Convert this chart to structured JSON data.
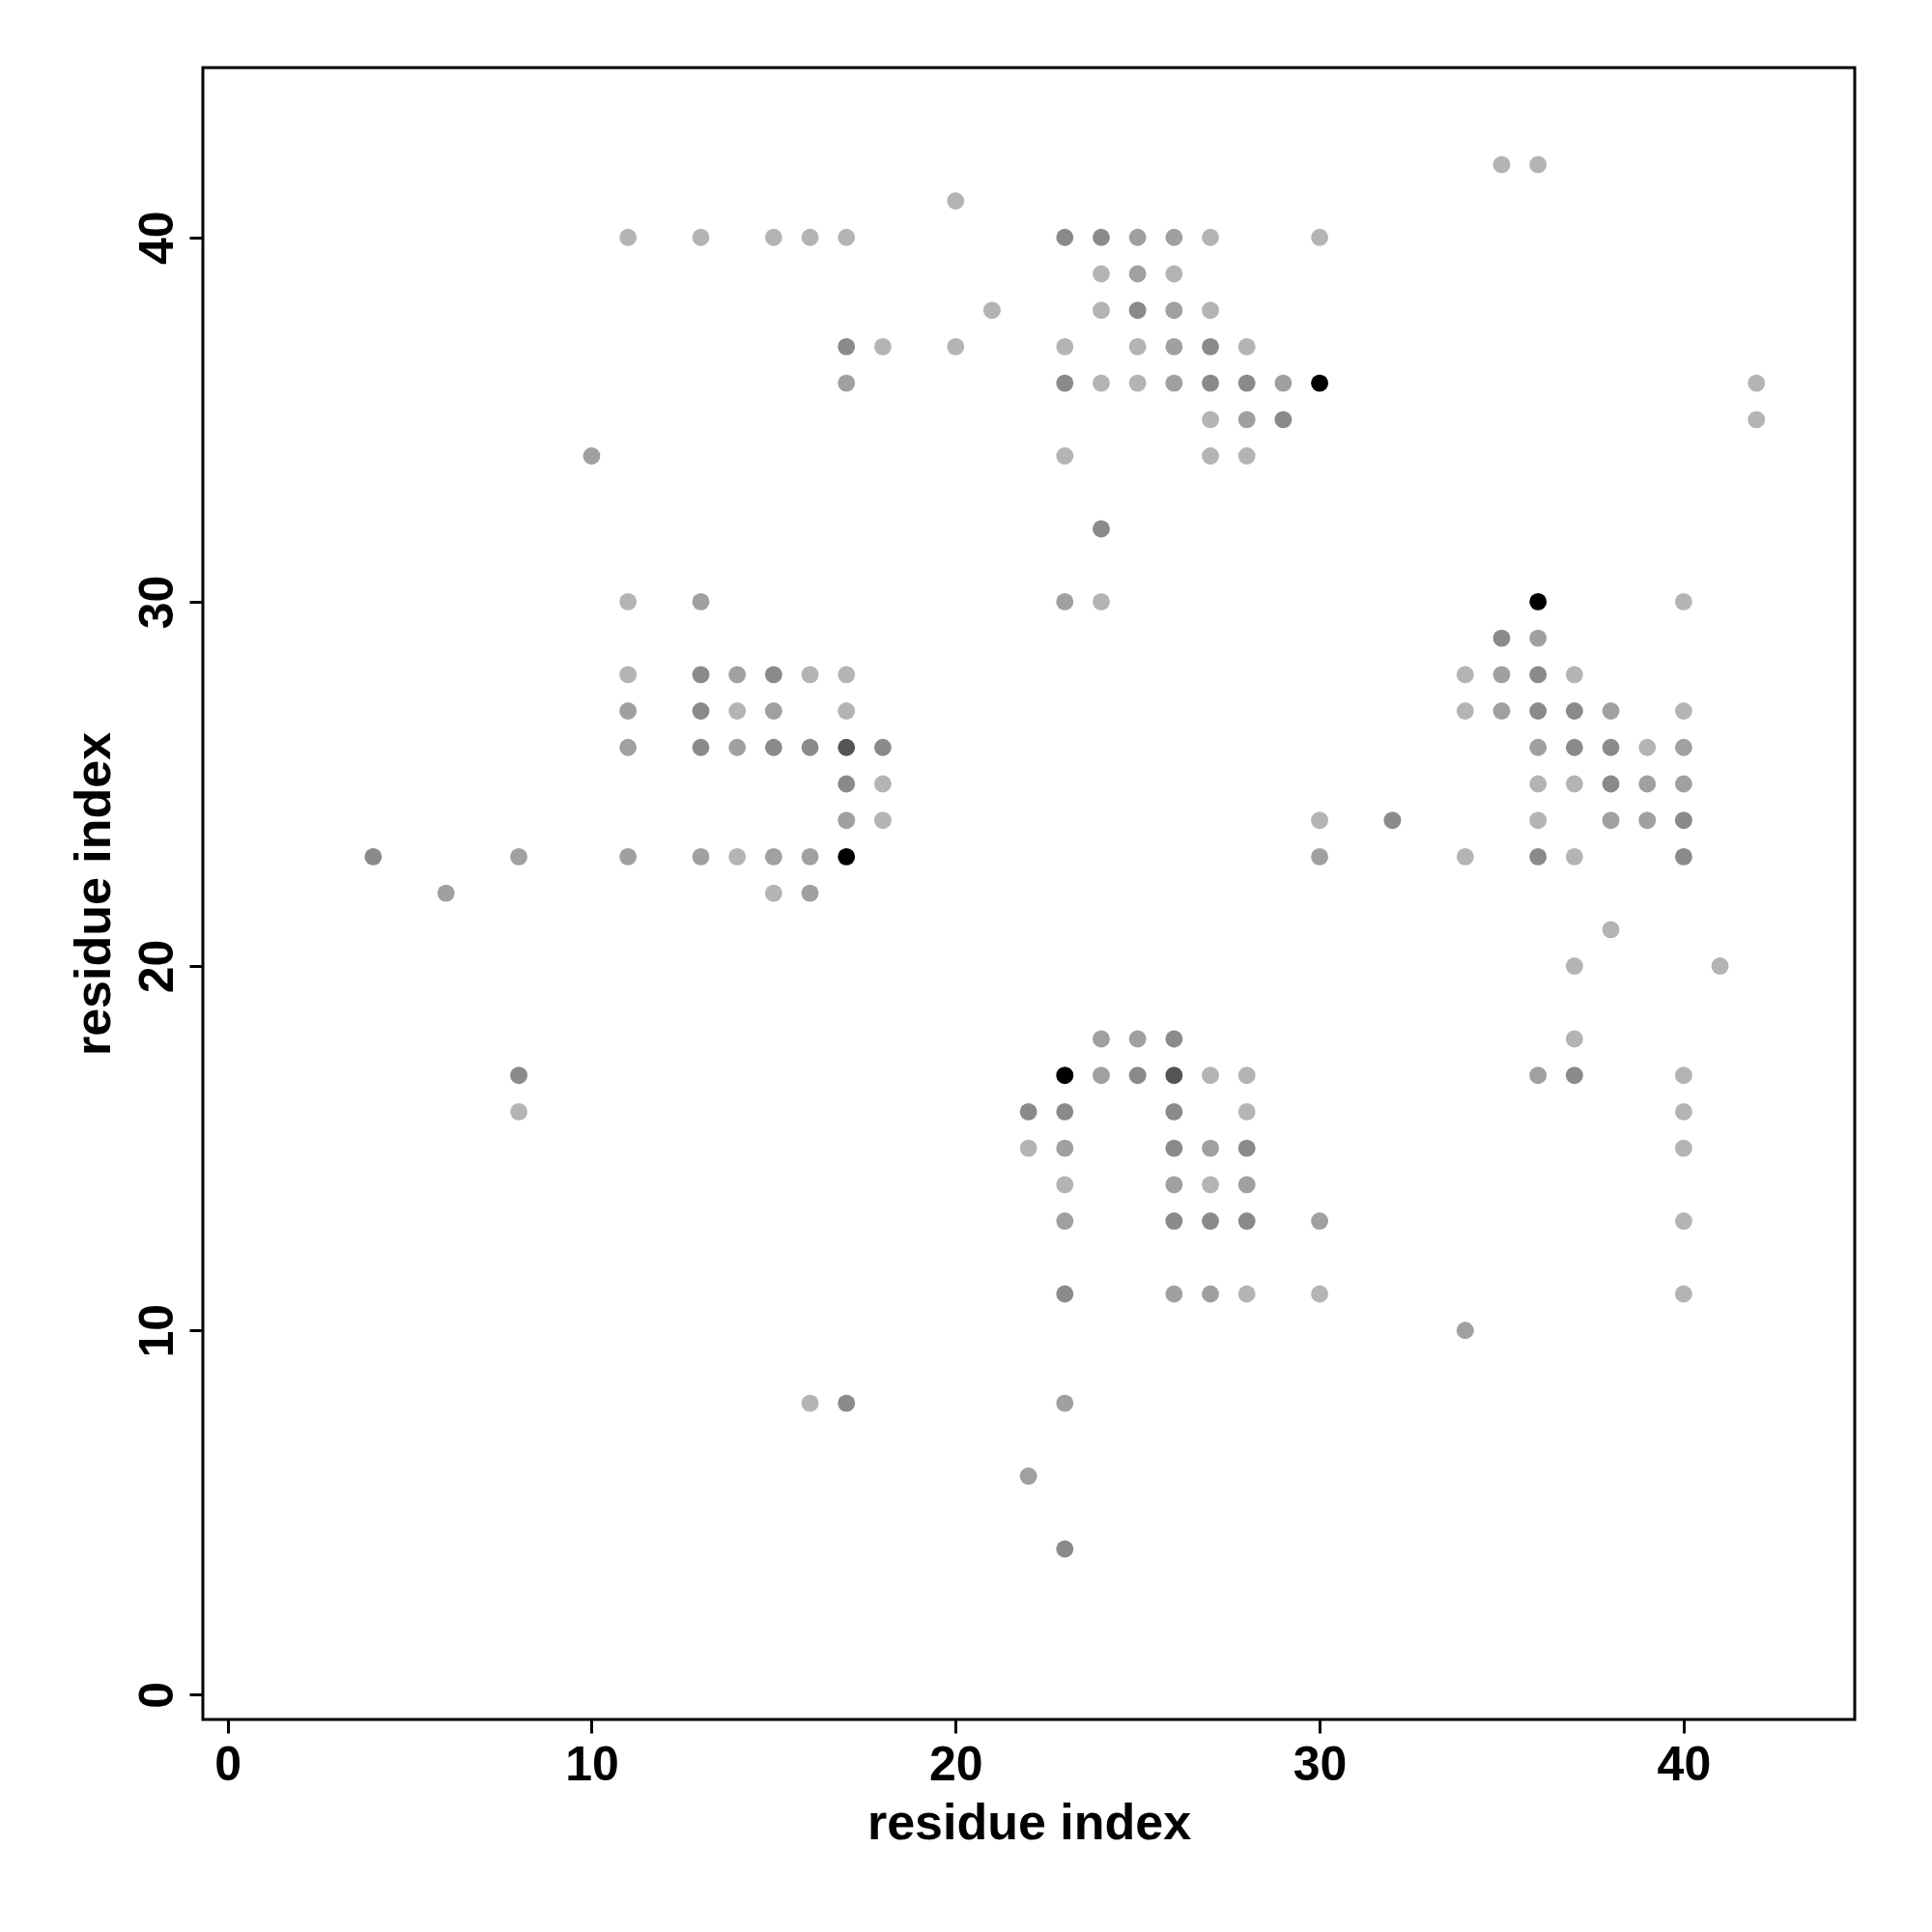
{
  "chart_data": {
    "type": "scatter",
    "xlabel": "residue index",
    "ylabel": "residue index",
    "xlim": [
      -0.68,
      44.7
    ],
    "ylim": [
      -0.68,
      44.66
    ],
    "xticks": [
      0,
      10,
      20,
      30,
      40
    ],
    "yticks": [
      0,
      10,
      20,
      30,
      40
    ],
    "grid": false,
    "marker": "circle",
    "x": [
      11,
      13,
      15,
      16,
      17,
      20,
      17,
      18,
      20,
      21,
      17,
      10,
      11,
      13,
      11,
      13,
      14,
      15,
      16,
      17,
      11,
      13,
      14,
      15,
      17,
      11,
      13,
      14,
      15,
      16,
      17,
      18,
      17,
      18,
      17,
      18,
      4,
      8,
      11,
      13,
      14,
      15,
      16,
      17,
      6,
      15,
      16,
      23,
      24,
      25,
      26,
      27,
      30,
      24,
      25,
      26,
      24,
      25,
      26,
      27,
      23,
      25,
      26,
      27,
      28,
      23,
      24,
      25,
      26,
      27,
      28,
      29,
      30,
      27,
      28,
      29,
      23,
      27,
      28,
      24,
      23,
      24,
      42,
      42,
      35,
      36,
      36,
      40,
      35,
      36,
      34,
      35,
      36,
      37,
      34,
      35,
      36,
      37,
      38,
      40,
      36,
      37,
      38,
      39,
      40,
      36,
      37,
      38,
      39,
      40,
      30,
      32,
      36,
      38,
      39,
      40,
      30,
      34,
      36,
      37,
      40,
      38,
      37,
      41,
      37,
      24,
      25,
      26,
      23,
      24,
      25,
      26,
      27,
      28,
      36,
      37,
      40,
      22,
      23,
      26,
      28,
      40,
      22,
      23,
      26,
      27,
      28,
      40,
      23,
      26,
      27,
      28,
      23,
      26,
      27,
      28,
      30,
      40,
      23,
      26,
      27,
      28,
      30,
      40,
      34,
      23,
      22,
      23,
      8,
      8,
      16,
      17
    ],
    "values": [
      40,
      40,
      40,
      40,
      40,
      41,
      37,
      37,
      37,
      38,
      36,
      34,
      30,
      30,
      28,
      28,
      28,
      28,
      28,
      28,
      27,
      27,
      27,
      27,
      27,
      26,
      26,
      26,
      26,
      26,
      26,
      26,
      25,
      25,
      24,
      24,
      23,
      23,
      23,
      23,
      23,
      23,
      23,
      23,
      22,
      22,
      22,
      40,
      40,
      40,
      40,
      40,
      40,
      39,
      39,
      39,
      38,
      38,
      38,
      38,
      37,
      37,
      37,
      37,
      37,
      36,
      36,
      36,
      36,
      36,
      36,
      36,
      36,
      35,
      35,
      35,
      34,
      34,
      34,
      32,
      30,
      30,
      36,
      35,
      42,
      42,
      30,
      30,
      29,
      29,
      28,
      28,
      28,
      28,
      27,
      27,
      27,
      27,
      27,
      27,
      26,
      26,
      26,
      26,
      26,
      25,
      25,
      25,
      25,
      25,
      24,
      24,
      24,
      24,
      24,
      24,
      23,
      23,
      23,
      23,
      23,
      21,
      20,
      20,
      18,
      18,
      18,
      18,
      17,
      17,
      17,
      17,
      17,
      17,
      17,
      17,
      17,
      16,
      16,
      16,
      16,
      16,
      15,
      15,
      15,
      15,
      15,
      15,
      14,
      14,
      14,
      14,
      13,
      13,
      13,
      13,
      13,
      13,
      11,
      11,
      11,
      11,
      11,
      11,
      10,
      8,
      6,
      4,
      17,
      16,
      8,
      8
    ],
    "colors": [
      "#b4b4b4",
      "#b4b4b4",
      "#b4b4b4",
      "#b4b4b4",
      "#b4b4b4",
      "#b4b4b4",
      "#8a8a8a",
      "#b4b4b4",
      "#b4b4b4",
      "#b4b4b4",
      "#a0a0a0",
      "#a0a0a0",
      "#b4b4b4",
      "#a0a0a0",
      "#b4b4b4",
      "#8a8a8a",
      "#a0a0a0",
      "#8a8a8a",
      "#b4b4b4",
      "#b4b4b4",
      "#a0a0a0",
      "#8a8a8a",
      "#b4b4b4",
      "#a0a0a0",
      "#b4b4b4",
      "#a0a0a0",
      "#8a8a8a",
      "#a0a0a0",
      "#8a8a8a",
      "#8a8a8a",
      "#555555",
      "#8a8a8a",
      "#8a8a8a",
      "#b4b4b4",
      "#a0a0a0",
      "#b4b4b4",
      "#8a8a8a",
      "#a0a0a0",
      "#a0a0a0",
      "#a0a0a0",
      "#b4b4b4",
      "#a0a0a0",
      "#a0a0a0",
      "#000000",
      "#a0a0a0",
      "#b4b4b4",
      "#a0a0a0",
      "#8a8a8a",
      "#8a8a8a",
      "#a0a0a0",
      "#a0a0a0",
      "#b4b4b4",
      "#b4b4b4",
      "#b4b4b4",
      "#a0a0a0",
      "#b4b4b4",
      "#b4b4b4",
      "#8a8a8a",
      "#a0a0a0",
      "#b4b4b4",
      "#b4b4b4",
      "#b4b4b4",
      "#a0a0a0",
      "#8a8a8a",
      "#b4b4b4",
      "#8a8a8a",
      "#b4b4b4",
      "#b4b4b4",
      "#a0a0a0",
      "#8a8a8a",
      "#8a8a8a",
      "#a0a0a0",
      "#000000",
      "#b4b4b4",
      "#a0a0a0",
      "#8a8a8a",
      "#b4b4b4",
      "#b4b4b4",
      "#b4b4b4",
      "#8a8a8a",
      "#a0a0a0",
      "#b4b4b4",
      "#b4b4b4",
      "#b4b4b4",
      "#b4b4b4",
      "#b4b4b4",
      "#000000",
      "#b4b4b4",
      "#8a8a8a",
      "#a0a0a0",
      "#b4b4b4",
      "#a0a0a0",
      "#8a8a8a",
      "#b4b4b4",
      "#b4b4b4",
      "#a0a0a0",
      "#8a8a8a",
      "#8a8a8a",
      "#a0a0a0",
      "#b4b4b4",
      "#a0a0a0",
      "#8a8a8a",
      "#8a8a8a",
      "#b4b4b4",
      "#a0a0a0",
      "#b4b4b4",
      "#b4b4b4",
      "#8a8a8a",
      "#a0a0a0",
      "#a0a0a0",
      "#b4b4b4",
      "#8a8a8a",
      "#b4b4b4",
      "#a0a0a0",
      "#a0a0a0",
      "#8a8a8a",
      "#a0a0a0",
      "#b4b4b4",
      "#8a8a8a",
      "#b4b4b4",
      "#8a8a8a",
      "#b4b4b4",
      "#b4b4b4",
      "#b4b4b4",
      "#b4b4b4",
      "#a0a0a0",
      "#a0a0a0",
      "#8a8a8a",
      "#000000",
      "#a0a0a0",
      "#8a8a8a",
      "#555555",
      "#b4b4b4",
      "#b4b4b4",
      "#a0a0a0",
      "#8a8a8a",
      "#b4b4b4",
      "#8a8a8a",
      "#8a8a8a",
      "#8a8a8a",
      "#b4b4b4",
      "#b4b4b4",
      "#b4b4b4",
      "#a0a0a0",
      "#8a8a8a",
      "#a0a0a0",
      "#8a8a8a",
      "#b4b4b4",
      "#b4b4b4",
      "#a0a0a0",
      "#b4b4b4",
      "#a0a0a0",
      "#a0a0a0",
      "#8a8a8a",
      "#8a8a8a",
      "#8a8a8a",
      "#a0a0a0",
      "#b4b4b4",
      "#8a8a8a",
      "#a0a0a0",
      "#a0a0a0",
      "#b4b4b4",
      "#b4b4b4",
      "#b4b4b4",
      "#a0a0a0",
      "#a0a0a0",
      "#a0a0a0",
      "#8a8a8a",
      "#8a8a8a",
      "#b4b4b4",
      "#b4b4b4",
      "#8a8a8a"
    ]
  }
}
